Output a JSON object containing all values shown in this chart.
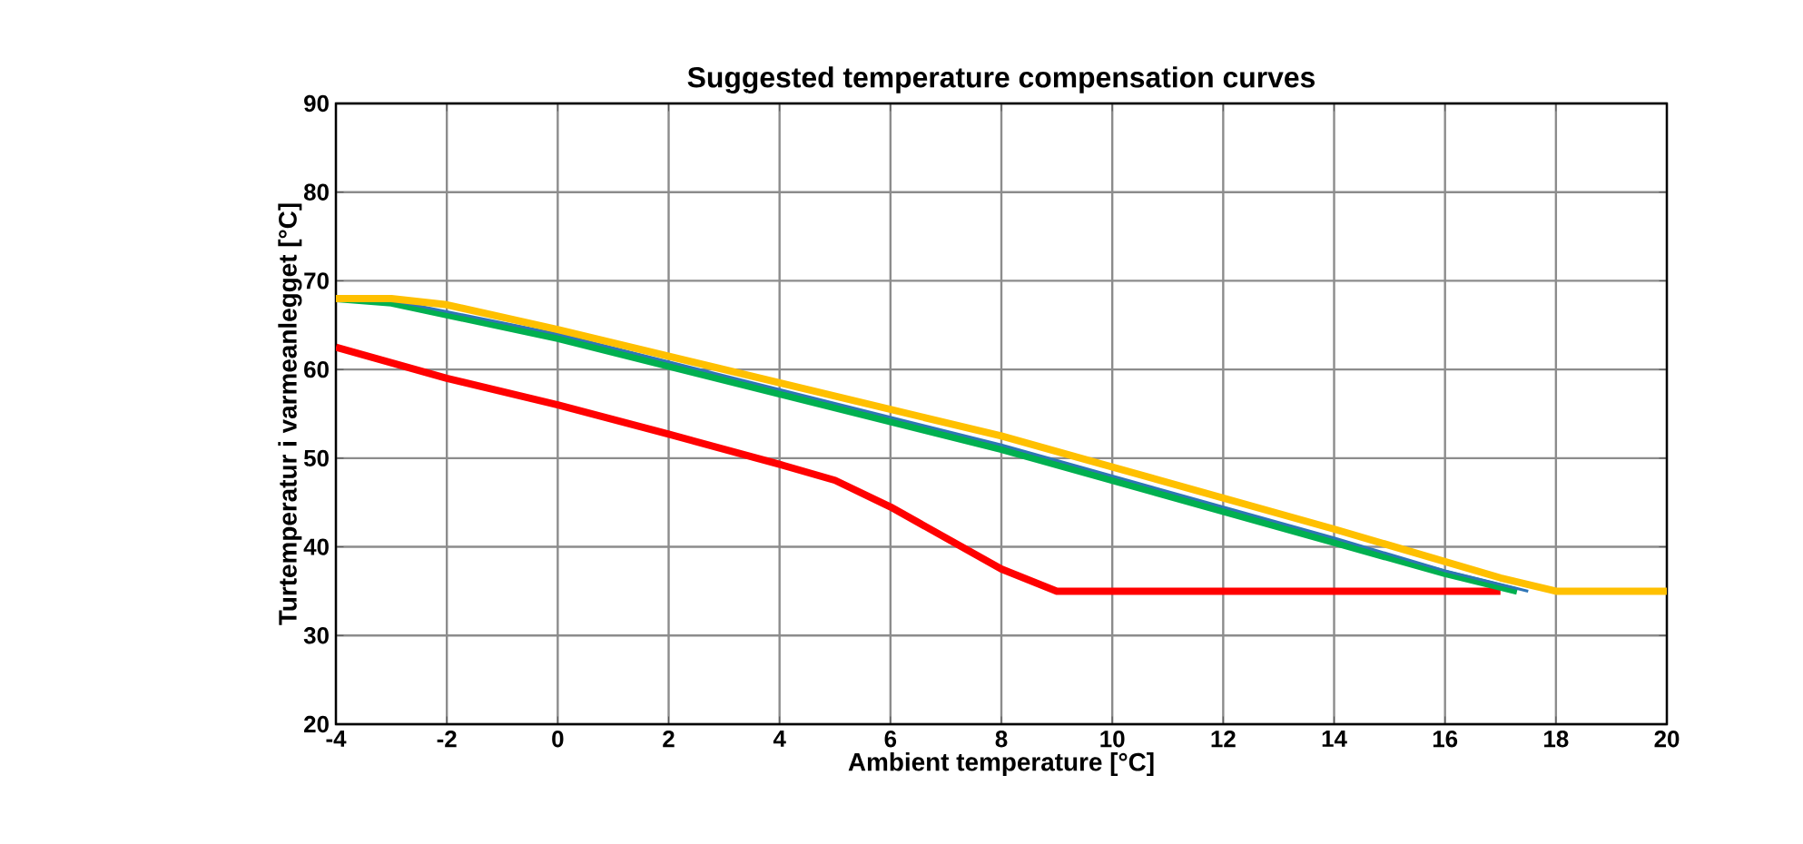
{
  "chart_data": {
    "type": "line",
    "title": "Suggested temperature compensation curves",
    "xlabel": "Ambient temperature [°C]",
    "ylabel": "Turtemperatur i varmeanlegget [°C]",
    "xlim": [
      -4,
      20
    ],
    "ylim": [
      20,
      90
    ],
    "xticks": [
      -4,
      -2,
      0,
      2,
      4,
      6,
      8,
      10,
      12,
      14,
      16,
      18,
      20
    ],
    "yticks": [
      20,
      30,
      40,
      50,
      60,
      70,
      80,
      90
    ],
    "grid": true,
    "marker": "none",
    "line_style": "solid",
    "series": [
      {
        "color": "#ff0000",
        "x": [
          -4,
          -2,
          0,
          2,
          4,
          5,
          6,
          8,
          9,
          17
        ],
        "values": [
          62.5,
          59,
          56,
          52.7,
          49.3,
          47.5,
          44.5,
          37.5,
          35,
          35
        ]
      },
      {
        "color": "#00b050",
        "x": [
          -4,
          -3,
          0,
          8,
          14,
          16,
          17.3
        ],
        "values": [
          68,
          67.5,
          63.5,
          51,
          40.5,
          37,
          35
        ]
      },
      {
        "color": "#2e75b6",
        "x": [
          -4,
          -3,
          0,
          8,
          14,
          16,
          17.5
        ],
        "values": [
          68,
          67.8,
          64,
          51.5,
          41,
          37.3,
          35
        ]
      },
      {
        "color": "#ffc000",
        "x": [
          -4,
          -3,
          -2,
          0,
          8,
          14,
          17,
          18,
          20
        ],
        "values": [
          68,
          68,
          67.3,
          64.5,
          52.5,
          42,
          36.5,
          35,
          35
        ]
      }
    ]
  }
}
